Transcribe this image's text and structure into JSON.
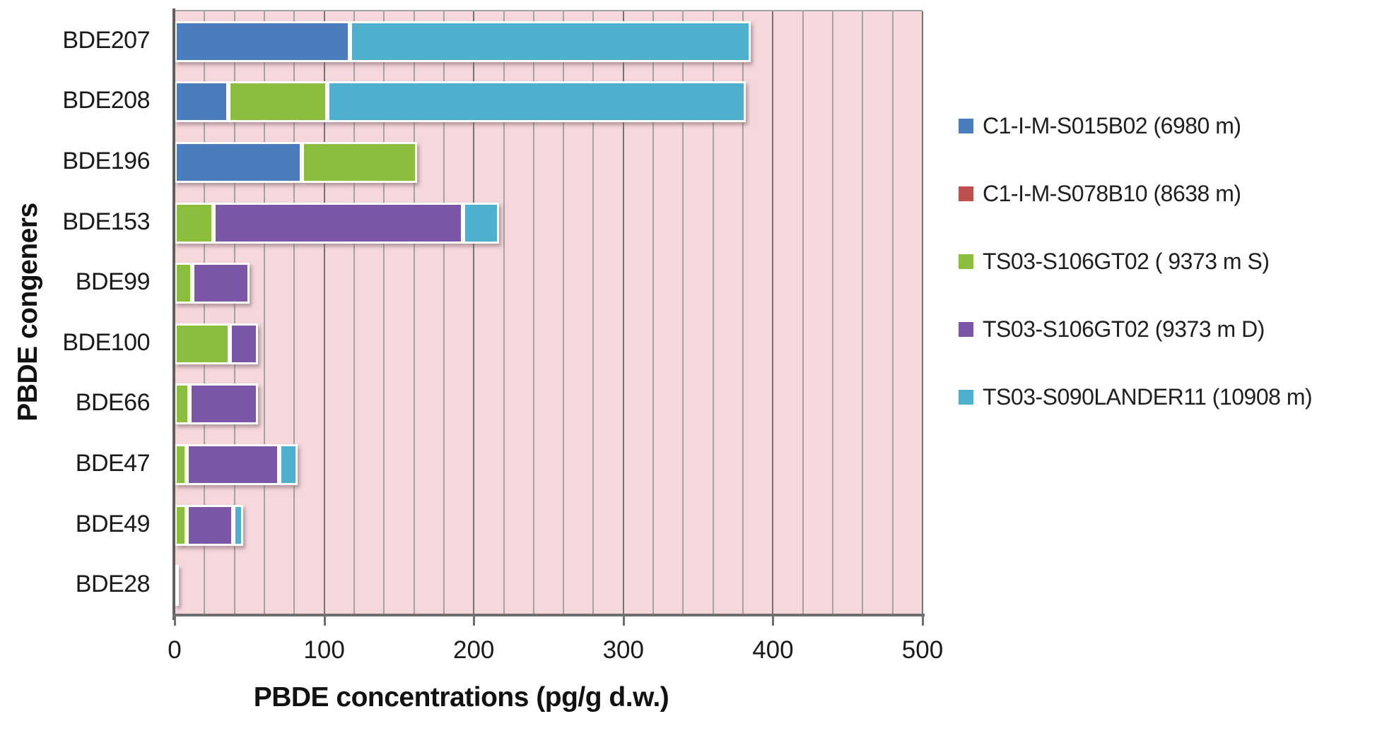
{
  "chart_data": {
    "type": "bar",
    "orientation": "horizontal",
    "stacked": true,
    "title": "",
    "xlabel": "PBDE concentrations (pg/g d.w.)",
    "ylabel": "PBDE congeners",
    "xlim": [
      0,
      500
    ],
    "xticks": [
      0,
      100,
      200,
      300,
      400,
      500
    ],
    "minor_gridline_step": 20,
    "grid": true,
    "legend_position": "right",
    "plot_background": "#f4d8db",
    "categories": [
      "BDE207",
      "BDE208",
      "BDE196",
      "BDE153",
      "BDE99",
      "BDE100",
      "BDE66",
      "BDE47",
      "BDE49",
      "BDE28"
    ],
    "series": [
      {
        "name": "C1-I-M-S015B02 (6980 m)",
        "color": "#4b7cbe",
        "values": [
          117,
          36,
          85,
          0,
          0,
          0,
          0,
          0,
          0,
          0
        ]
      },
      {
        "name": "C1-I-M-S078B10 (8638 m)",
        "color": "#c0504d",
        "values": [
          0,
          0,
          0,
          0,
          0,
          0,
          0,
          0,
          0,
          0
        ]
      },
      {
        "name": "TS03-S106GT02 ( 9373 m S)",
        "color": "#8bbe3d",
        "values": [
          0,
          66,
          77,
          26,
          12,
          37,
          10,
          8,
          8,
          0.5
        ]
      },
      {
        "name": "TS03-S106GT02 (9373 m D)",
        "color": "#7b57a8",
        "values": [
          0,
          0,
          0,
          167,
          38,
          19,
          46,
          62,
          31,
          0
        ]
      },
      {
        "name": "TS03-S090LANDER11 (10908 m)",
        "color": "#4fb0cd",
        "values": [
          268,
          280,
          0,
          24,
          0,
          0,
          0,
          12,
          7,
          0
        ]
      }
    ],
    "totals": [
      385,
      382,
      162,
      217,
      50,
      56,
      56,
      82,
      46,
      0.5
    ]
  }
}
